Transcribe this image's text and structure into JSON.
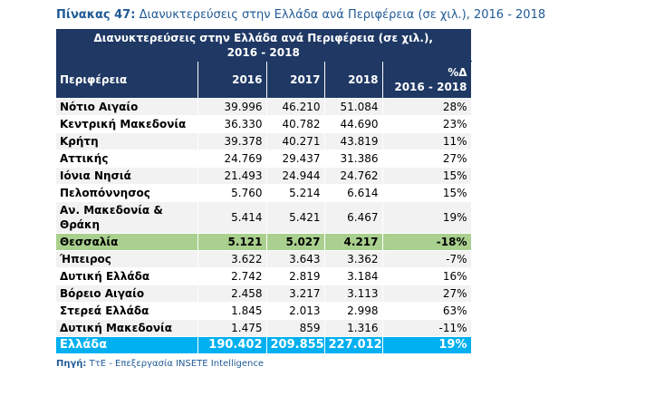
{
  "caption": {
    "label": "Πίνακας 47:",
    "text": "Διανυκτερεύσεις στην Ελλάδα ανά Περιφέρεια (σε χιλ.), 2016 - 2018"
  },
  "table": {
    "title_lines": [
      "Διανυκτερεύσεις στην Ελλάδα ανά Περιφέρεια (σε χιλ.),",
      "2016 - 2018"
    ],
    "header": [
      "Περιφέρεια",
      "2016",
      "2017",
      "2018",
      [
        "%Δ",
        "2016 - 2018"
      ]
    ],
    "rows": [
      [
        "Νότιο Αιγαίο",
        "39.996",
        "46.210",
        "51.084",
        "28%"
      ],
      [
        "Κεντρική Μακεδονία",
        "36.330",
        "40.782",
        "44.690",
        "23%"
      ],
      [
        "Κρήτη",
        "39.378",
        "40.271",
        "43.819",
        "11%"
      ],
      [
        "Αττικής",
        "24.769",
        "29.437",
        "31.386",
        "27%"
      ],
      [
        "Ιόνια Νησιά",
        "21.493",
        "24.944",
        "24.762",
        "15%"
      ],
      [
        "Πελοπόννησος",
        "5.760",
        "5.214",
        "6.614",
        "15%"
      ],
      [
        "Αν. Μακεδονία & Θράκη",
        "5.414",
        "5.421",
        "6.467",
        "19%"
      ],
      [
        "Θεσσαλία",
        "5.121",
        "5.027",
        "4.217",
        "-18%"
      ],
      [
        "Ήπειρος",
        "3.622",
        "3.643",
        "3.362",
        "-7%"
      ],
      [
        "Δυτική Ελλάδα",
        "2.742",
        "2.819",
        "3.184",
        "16%"
      ],
      [
        "Βόρειο Αιγαίο",
        "2.458",
        "3.217",
        "3.113",
        "27%"
      ],
      [
        "Στερεά Ελλάδα",
        "1.845",
        "2.013",
        "2.998",
        "63%"
      ],
      [
        "Δυτική Μακεδονία",
        "1.475",
        "859",
        "1.316",
        "-11%"
      ],
      [
        "Ελλάδα",
        "190.402",
        "209.855",
        "227.012",
        "19%"
      ]
    ]
  },
  "source": {
    "label": "Πηγή:",
    "text": "ΤτΕ - Επεξεργασία INSETE Intelligence"
  }
}
